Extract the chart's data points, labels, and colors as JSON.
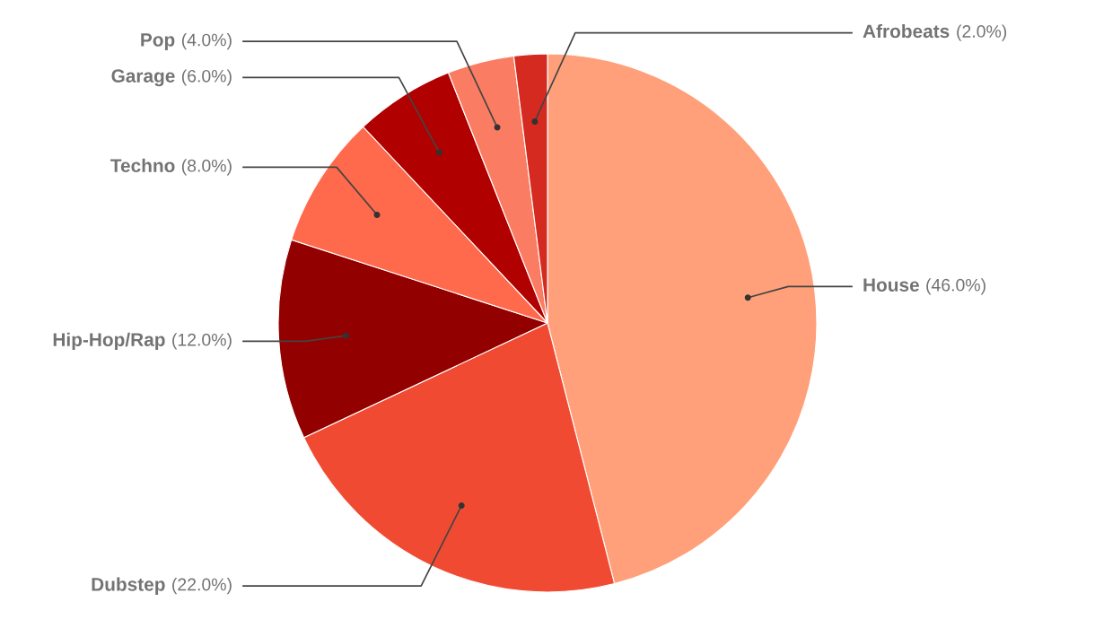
{
  "chart_data": {
    "type": "pie",
    "categories": [
      "House",
      "Dubstep",
      "Hip-Hop/Rap",
      "Techno",
      "Garage",
      "Pop",
      "Afrobeats"
    ],
    "values": [
      46,
      22,
      12,
      8,
      6,
      4,
      2
    ],
    "colors": [
      "#ffa07a",
      "#f04b32",
      "#930000",
      "#ff694c",
      "#b00000",
      "#fa7d63",
      "#d42a1f"
    ],
    "value_labels": [
      "(46.0%)",
      "(22.0%)",
      "(12.0%)",
      "(8.0%)",
      "(6.0%)",
      "(4.0%)",
      "(2.0%)"
    ]
  }
}
